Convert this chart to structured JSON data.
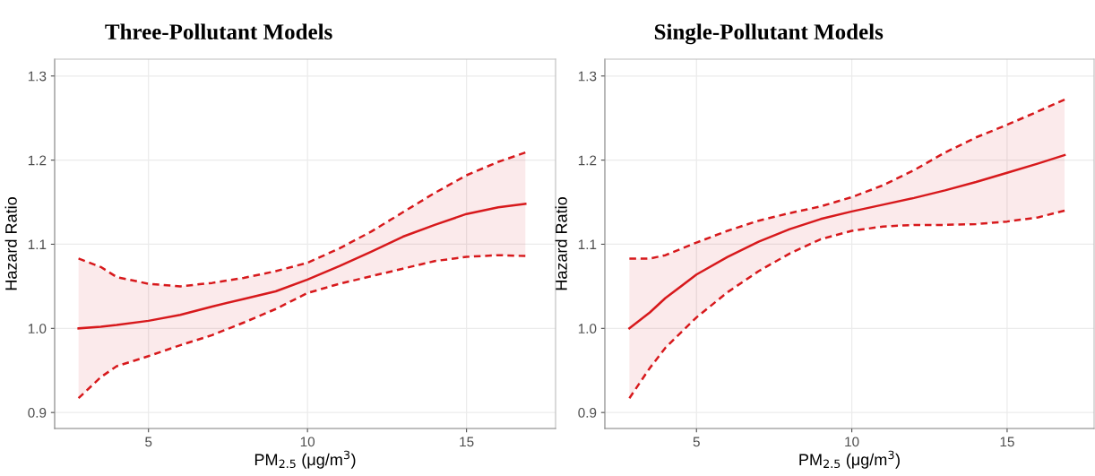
{
  "chart_data": [
    {
      "type": "line",
      "title": "Three-Pollutant Models",
      "xlabel": "PM$_{2.5}$ (μg/m$^{3}$)",
      "ylabel": "Hazard Ratio",
      "x": [
        2.8,
        3.5,
        4,
        5,
        6,
        7,
        8,
        9,
        10,
        11,
        12,
        13,
        14,
        15,
        16,
        16.85
      ],
      "series": [
        {
          "color": "#d7191c",
          "line_style": "solid",
          "values": [
            1.0,
            1.002,
            1.004,
            1.009,
            1.016,
            1.026,
            1.035,
            1.044,
            1.058,
            1.074,
            1.091,
            1.109,
            1.123,
            1.136,
            1.144,
            1.148
          ],
          "lower": [
            0.917,
            0.942,
            0.955,
            0.967,
            0.98,
            0.992,
            1.007,
            1.023,
            1.042,
            1.053,
            1.062,
            1.071,
            1.08,
            1.085,
            1.087,
            1.086
          ],
          "upper": [
            1.083,
            1.073,
            1.061,
            1.053,
            1.05,
            1.054,
            1.06,
            1.068,
            1.078,
            1.095,
            1.115,
            1.138,
            1.161,
            1.182,
            1.198,
            1.209
          ]
        },
        {
          "color": "#d7191c",
          "line_style": "dashed",
          "values": [
            0.917,
            0.942,
            0.955,
            0.967,
            0.98,
            0.992,
            1.007,
            1.023,
            1.042,
            1.053,
            1.062,
            1.071,
            1.08,
            1.085,
            1.087,
            1.086
          ]
        },
        {
          "color": "#d7191c",
          "line_style": "dashed",
          "values": [
            1.083,
            1.073,
            1.061,
            1.053,
            1.05,
            1.054,
            1.06,
            1.068,
            1.078,
            1.095,
            1.115,
            1.138,
            1.161,
            1.182,
            1.198,
            1.209
          ]
        }
      ],
      "xlim": [
        2.05,
        17.8
      ],
      "ylim": [
        0.881,
        1.32
      ],
      "xticks": [
        5,
        10,
        15
      ],
      "yticks": [
        {
          "value": 0.9,
          "label": "0.9"
        },
        {
          "value": 1.0,
          "label": "1.0"
        },
        {
          "value": 1.1,
          "label": "1.1"
        },
        {
          "value": 1.2,
          "label": "1.2"
        },
        {
          "value": 1.3,
          "label": "1.3"
        }
      ],
      "grid": true
    },
    {
      "type": "line",
      "title": "Single-Pollutant Models",
      "xlabel": "PM$_{2.5}$ (μg/m$^{3}$)",
      "ylabel": "Hazard Ratio",
      "x": [
        2.84,
        3.5,
        4,
        5,
        6,
        7,
        8,
        9,
        10,
        11,
        12,
        13,
        14,
        15,
        16,
        16.85
      ],
      "series": [
        {
          "color": "#d7191c",
          "line_style": "solid",
          "values": [
            1.0,
            1.019,
            1.036,
            1.064,
            1.085,
            1.103,
            1.118,
            1.13,
            1.139,
            1.147,
            1.155,
            1.164,
            1.174,
            1.185,
            1.196,
            1.206
          ],
          "lower": [
            0.917,
            0.953,
            0.977,
            1.013,
            1.043,
            1.068,
            1.089,
            1.106,
            1.116,
            1.121,
            1.123,
            1.123,
            1.124,
            1.127,
            1.132,
            1.14
          ],
          "upper": [
            1.083,
            1.083,
            1.087,
            1.102,
            1.116,
            1.128,
            1.137,
            1.145,
            1.156,
            1.17,
            1.188,
            1.209,
            1.227,
            1.242,
            1.258,
            1.272
          ]
        },
        {
          "color": "#d7191c",
          "line_style": "dashed",
          "values": [
            0.917,
            0.953,
            0.977,
            1.013,
            1.043,
            1.068,
            1.089,
            1.106,
            1.116,
            1.121,
            1.123,
            1.123,
            1.124,
            1.127,
            1.132,
            1.14
          ]
        },
        {
          "color": "#d7191c",
          "line_style": "dashed",
          "values": [
            1.083,
            1.083,
            1.087,
            1.102,
            1.116,
            1.128,
            1.137,
            1.145,
            1.156,
            1.17,
            1.188,
            1.209,
            1.227,
            1.242,
            1.258,
            1.272
          ]
        }
      ],
      "xlim": [
        2.05,
        17.8
      ],
      "ylim": [
        0.881,
        1.32
      ],
      "xticks": [
        5,
        10,
        15
      ],
      "yticks": [
        {
          "value": 0.9,
          "label": "0.9"
        },
        {
          "value": 1.0,
          "label": "1.0"
        },
        {
          "value": 1.1,
          "label": "1.1"
        },
        {
          "value": 1.2,
          "label": "1.2"
        },
        {
          "value": 1.3,
          "label": "1.3"
        }
      ],
      "grid": true
    }
  ]
}
